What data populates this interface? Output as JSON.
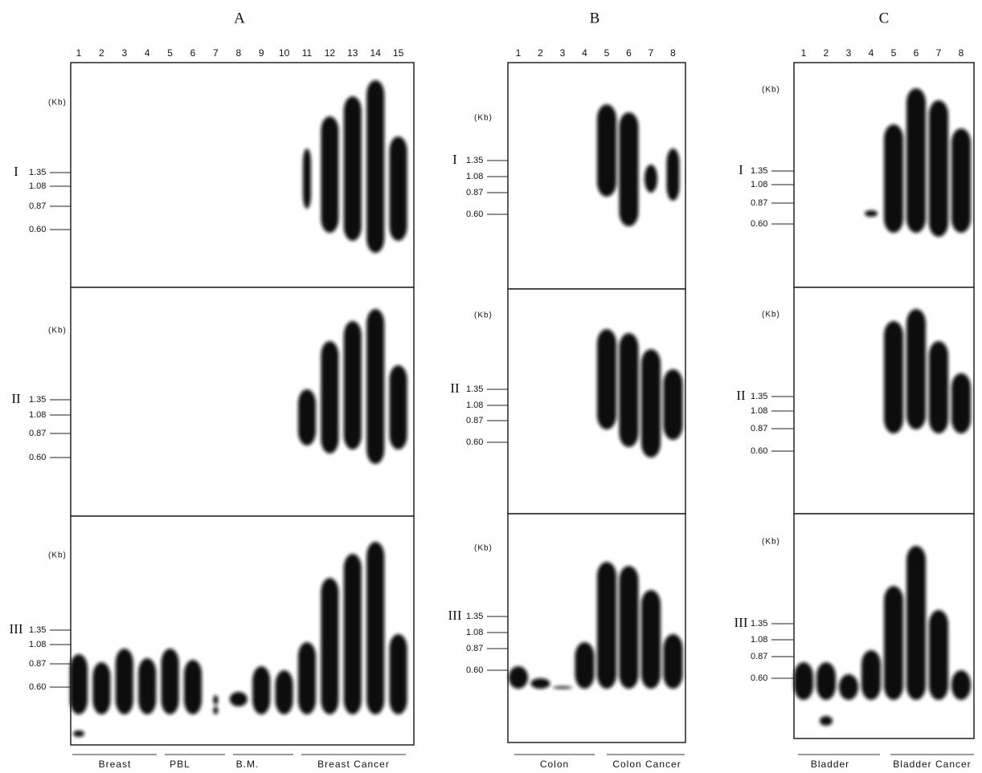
{
  "panels": [
    {
      "letter": "A",
      "lanes": [
        "1",
        "2",
        "3",
        "4",
        "5",
        "6",
        "7",
        "8",
        "9",
        "10",
        "11",
        "12",
        "13",
        "14",
        "15"
      ],
      "groups": [
        "Breast",
        "PBL",
        "B.M.",
        "Breast Cancer"
      ],
      "rows": [
        {
          "numeral": "I",
          "unit": "(Kb)",
          "markers": [
            "1.35",
            "1.08",
            "0.87",
            "0.60"
          ]
        },
        {
          "numeral": "II",
          "unit": "(Kb)",
          "markers": [
            "1.35",
            "1.08",
            "0.87",
            "0.60"
          ]
        },
        {
          "numeral": "III",
          "unit": "(Kb)",
          "markers": [
            "1.35",
            "1.08",
            "0.87",
            "0.60"
          ]
        }
      ]
    },
    {
      "letter": "B",
      "lanes": [
        "1",
        "2",
        "3",
        "4",
        "5",
        "6",
        "7",
        "8"
      ],
      "groups": [
        "Colon",
        "Colon Cancer"
      ],
      "rows": [
        {
          "numeral": "I",
          "unit": "(Kb)",
          "markers": [
            "1.35",
            "1.08",
            "0.87",
            "0.60"
          ]
        },
        {
          "numeral": "II",
          "unit": "(Kb)",
          "markers": [
            "1.35",
            "1.08",
            "0.87",
            "0.60"
          ]
        },
        {
          "numeral": "III",
          "unit": "(Kb)",
          "markers": [
            "1.35",
            "1.08",
            "0.87",
            "0.60"
          ]
        }
      ]
    },
    {
      "letter": "C",
      "lanes": [
        "1",
        "2",
        "3",
        "4",
        "5",
        "6",
        "7",
        "8"
      ],
      "groups": [
        "Bladder",
        "Bladder Cancer"
      ],
      "rows": [
        {
          "numeral": "I",
          "unit": "(Kb)",
          "markers": [
            "1.35",
            "1.08",
            "0.87",
            "0.60"
          ]
        },
        {
          "numeral": "II",
          "unit": "(Kb)",
          "markers": [
            "1.35",
            "1.08",
            "0.87",
            "0.60"
          ]
        },
        {
          "numeral": "III",
          "unit": "(Kb)",
          "markers": [
            "1.35",
            "1.08",
            "0.87",
            "0.60"
          ]
        }
      ]
    }
  ]
}
